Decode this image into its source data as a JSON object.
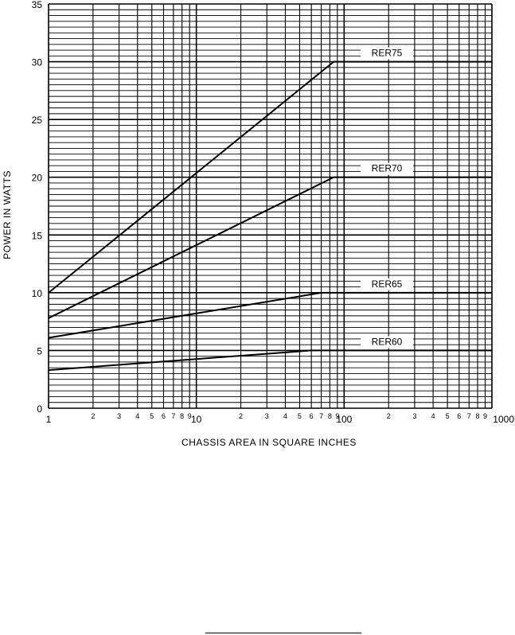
{
  "chart_data": {
    "type": "line",
    "title": "",
    "xlabel": "CHASSIS AREA IN SQUARE INCHES",
    "ylabel": "POWER IN WATTS",
    "xscale": "log",
    "xlim": [
      1,
      1000
    ],
    "ylim": [
      0,
      35
    ],
    "grid": true,
    "legend": "inline labels at right end of each line",
    "x_tick_labels": [
      {
        "value": 1,
        "label": "1"
      },
      {
        "value": 2,
        "label": "2"
      },
      {
        "value": 3,
        "label": "3"
      },
      {
        "value": 4,
        "label": "4"
      },
      {
        "value": 5,
        "label": "5"
      },
      {
        "value": 6,
        "label": "6"
      },
      {
        "value": 7,
        "label": "7"
      },
      {
        "value": 8,
        "label": "8"
      },
      {
        "value": 9,
        "label": "9"
      },
      {
        "value": 10,
        "label": "10"
      },
      {
        "value": 20,
        "label": "2"
      },
      {
        "value": 30,
        "label": "3"
      },
      {
        "value": 40,
        "label": "4"
      },
      {
        "value": 50,
        "label": "5"
      },
      {
        "value": 60,
        "label": "6"
      },
      {
        "value": 70,
        "label": "7"
      },
      {
        "value": 80,
        "label": "8"
      },
      {
        "value": 90,
        "label": "9"
      },
      {
        "value": 100,
        "label": "100"
      },
      {
        "value": 200,
        "label": "2"
      },
      {
        "value": 300,
        "label": "3"
      },
      {
        "value": 400,
        "label": "4"
      },
      {
        "value": 500,
        "label": "5"
      },
      {
        "value": 600,
        "label": "6"
      },
      {
        "value": 700,
        "label": "7"
      },
      {
        "value": 800,
        "label": "8"
      },
      {
        "value": 900,
        "label": "9"
      },
      {
        "value": 1000,
        "label": "1000"
      }
    ],
    "y_tick_labels": [
      "0",
      "5",
      "10",
      "15",
      "20",
      "25",
      "30",
      "35"
    ],
    "series": [
      {
        "name": "RER75",
        "points": [
          [
            1,
            10
          ],
          [
            85,
            30
          ],
          [
            1000,
            30
          ]
        ]
      },
      {
        "name": "RER70",
        "points": [
          [
            1,
            7.8
          ],
          [
            85,
            20
          ],
          [
            1000,
            20
          ]
        ]
      },
      {
        "name": "RER65",
        "points": [
          [
            1,
            6.1
          ],
          [
            70,
            10
          ],
          [
            1000,
            10
          ]
        ]
      },
      {
        "name": "RER60",
        "points": [
          [
            1,
            3.3
          ],
          [
            60,
            5
          ],
          [
            1000,
            5
          ]
        ]
      }
    ]
  }
}
